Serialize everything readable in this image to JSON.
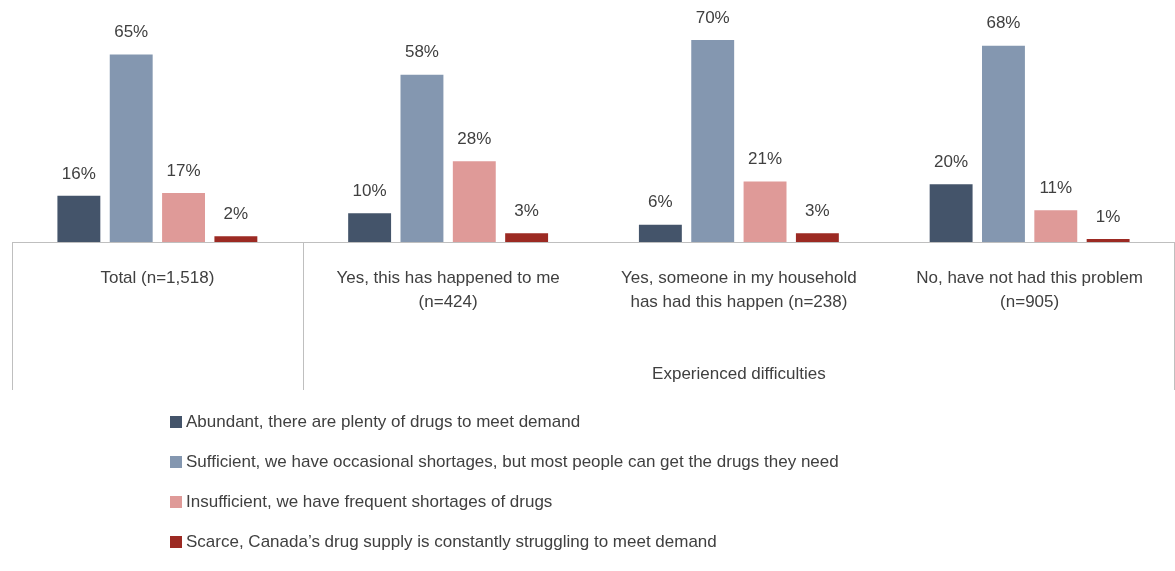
{
  "chart_data": {
    "type": "bar",
    "categories": [
      "Total (n=1,518)",
      "Yes, this has happened to me (n=424)",
      "Yes, someone in my household has had this happen (n=238)",
      "No, have not had this problem (n=905)"
    ],
    "annotations": [
      "Experienced difficulties"
    ],
    "legend": "bottom",
    "series": [
      {
        "name": "Abundant, there are plenty of drugs to meet demand",
        "color": "#44546a",
        "values": [
          16,
          10,
          6,
          20
        ],
        "value_labels": [
          "16%",
          "10%",
          "6%",
          "20%"
        ]
      },
      {
        "name": "Sufficient, we have occasional shortages, but most people can get the drugs they need",
        "color": "#8497b0",
        "values": [
          65,
          58,
          70,
          68
        ],
        "value_labels": [
          "65%",
          "58%",
          "70%",
          "68%"
        ]
      },
      {
        "name": "Insufficient, we have frequent shortages of drugs",
        "color": "#df9a98",
        "values": [
          17,
          28,
          21,
          11
        ],
        "value_labels": [
          "17%",
          "28%",
          "21%",
          "11%"
        ]
      },
      {
        "name": "Scarce, Canada’s drug supply is constantly struggling to meet demand",
        "color": "#9c2a23",
        "values": [
          2,
          3,
          3,
          1
        ],
        "value_labels": [
          "2%",
          "3%",
          "3%",
          "1%"
        ]
      }
    ]
  }
}
